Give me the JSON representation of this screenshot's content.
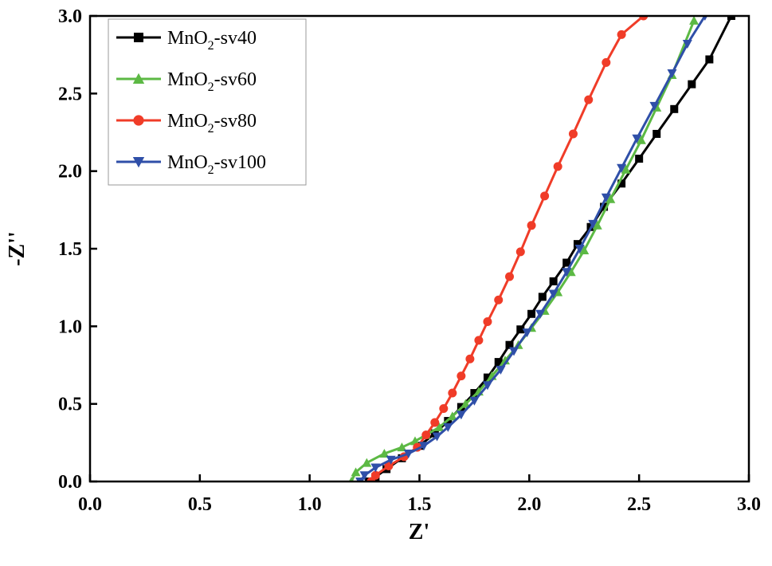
{
  "chart_data": {
    "type": "line",
    "title": "",
    "xlabel": "Z'",
    "ylabel": "-Z''",
    "xlim": [
      0.0,
      3.0
    ],
    "ylim": [
      0.0,
      3.0
    ],
    "xticks": [
      "0.0",
      "0.5",
      "1.0",
      "1.5",
      "2.0",
      "2.5",
      "3.0"
    ],
    "yticks": [
      "0.0",
      "0.5",
      "1.0",
      "1.5",
      "2.0",
      "2.5",
      "3.0"
    ],
    "legend_position": "top-left",
    "grid": false,
    "series": [
      {
        "name": "MnO2-sv40",
        "name_base": "MnO",
        "name_sub": "2",
        "name_suffix": "-sv40",
        "color": "#000000",
        "marker": "square",
        "points": [
          [
            1.27,
            0.0
          ],
          [
            1.3,
            0.03
          ],
          [
            1.35,
            0.08
          ],
          [
            1.42,
            0.15
          ],
          [
            1.5,
            0.23
          ],
          [
            1.57,
            0.31
          ],
          [
            1.63,
            0.39
          ],
          [
            1.69,
            0.48
          ],
          [
            1.75,
            0.57
          ],
          [
            1.81,
            0.67
          ],
          [
            1.86,
            0.77
          ],
          [
            1.91,
            0.88
          ],
          [
            1.96,
            0.98
          ],
          [
            2.01,
            1.08
          ],
          [
            2.06,
            1.19
          ],
          [
            2.11,
            1.29
          ],
          [
            2.17,
            1.41
          ],
          [
            2.22,
            1.53
          ],
          [
            2.28,
            1.64
          ],
          [
            2.34,
            1.77
          ],
          [
            2.42,
            1.92
          ],
          [
            2.5,
            2.08
          ],
          [
            2.58,
            2.24
          ],
          [
            2.66,
            2.4
          ],
          [
            2.74,
            2.56
          ],
          [
            2.82,
            2.72
          ],
          [
            2.92,
            3.0
          ]
        ]
      },
      {
        "name": "MnO2-sv60",
        "name_base": "MnO",
        "name_sub": "2",
        "name_suffix": "-sv60",
        "color": "#5cb944",
        "marker": "triangle-up",
        "points": [
          [
            1.19,
            0.0
          ],
          [
            1.21,
            0.06
          ],
          [
            1.26,
            0.12
          ],
          [
            1.34,
            0.18
          ],
          [
            1.42,
            0.22
          ],
          [
            1.48,
            0.26
          ],
          [
            1.53,
            0.3
          ],
          [
            1.59,
            0.35
          ],
          [
            1.65,
            0.42
          ],
          [
            1.71,
            0.5
          ],
          [
            1.77,
            0.58
          ],
          [
            1.83,
            0.68
          ],
          [
            1.89,
            0.78
          ],
          [
            1.95,
            0.88
          ],
          [
            2.01,
            0.99
          ],
          [
            2.07,
            1.1
          ],
          [
            2.13,
            1.22
          ],
          [
            2.19,
            1.35
          ],
          [
            2.25,
            1.49
          ],
          [
            2.31,
            1.65
          ],
          [
            2.37,
            1.82
          ],
          [
            2.44,
            2.01
          ],
          [
            2.51,
            2.2
          ],
          [
            2.58,
            2.41
          ],
          [
            2.65,
            2.62
          ],
          [
            2.75,
            2.97
          ]
        ]
      },
      {
        "name": "MnO2-sv80",
        "name_base": "MnO",
        "name_sub": "2",
        "name_suffix": "-sv80",
        "color": "#f03c28",
        "marker": "circle",
        "points": [
          [
            1.28,
            0.0
          ],
          [
            1.3,
            0.04
          ],
          [
            1.36,
            0.1
          ],
          [
            1.43,
            0.16
          ],
          [
            1.49,
            0.22
          ],
          [
            1.53,
            0.3
          ],
          [
            1.57,
            0.38
          ],
          [
            1.61,
            0.47
          ],
          [
            1.65,
            0.57
          ],
          [
            1.69,
            0.68
          ],
          [
            1.73,
            0.79
          ],
          [
            1.77,
            0.91
          ],
          [
            1.81,
            1.03
          ],
          [
            1.86,
            1.17
          ],
          [
            1.91,
            1.32
          ],
          [
            1.96,
            1.48
          ],
          [
            2.01,
            1.65
          ],
          [
            2.07,
            1.84
          ],
          [
            2.13,
            2.03
          ],
          [
            2.2,
            2.24
          ],
          [
            2.27,
            2.46
          ],
          [
            2.35,
            2.7
          ],
          [
            2.42,
            2.88
          ],
          [
            2.52,
            3.0
          ]
        ]
      },
      {
        "name": "MnO2-sv100",
        "name_base": "MnO",
        "name_sub": "2",
        "name_suffix": "-sv100",
        "color": "#2f4fa8",
        "marker": "triangle-down",
        "points": [
          [
            1.23,
            0.0
          ],
          [
            1.25,
            0.04
          ],
          [
            1.3,
            0.09
          ],
          [
            1.37,
            0.14
          ],
          [
            1.45,
            0.18
          ],
          [
            1.52,
            0.23
          ],
          [
            1.58,
            0.29
          ],
          [
            1.63,
            0.35
          ],
          [
            1.69,
            0.43
          ],
          [
            1.75,
            0.52
          ],
          [
            1.81,
            0.62
          ],
          [
            1.87,
            0.72
          ],
          [
            1.93,
            0.84
          ],
          [
            1.99,
            0.96
          ],
          [
            2.05,
            1.08
          ],
          [
            2.11,
            1.21
          ],
          [
            2.17,
            1.35
          ],
          [
            2.23,
            1.5
          ],
          [
            2.29,
            1.66
          ],
          [
            2.35,
            1.83
          ],
          [
            2.42,
            2.02
          ],
          [
            2.49,
            2.21
          ],
          [
            2.57,
            2.42
          ],
          [
            2.65,
            2.63
          ],
          [
            2.72,
            2.82
          ],
          [
            2.8,
            3.0
          ]
        ]
      }
    ]
  }
}
